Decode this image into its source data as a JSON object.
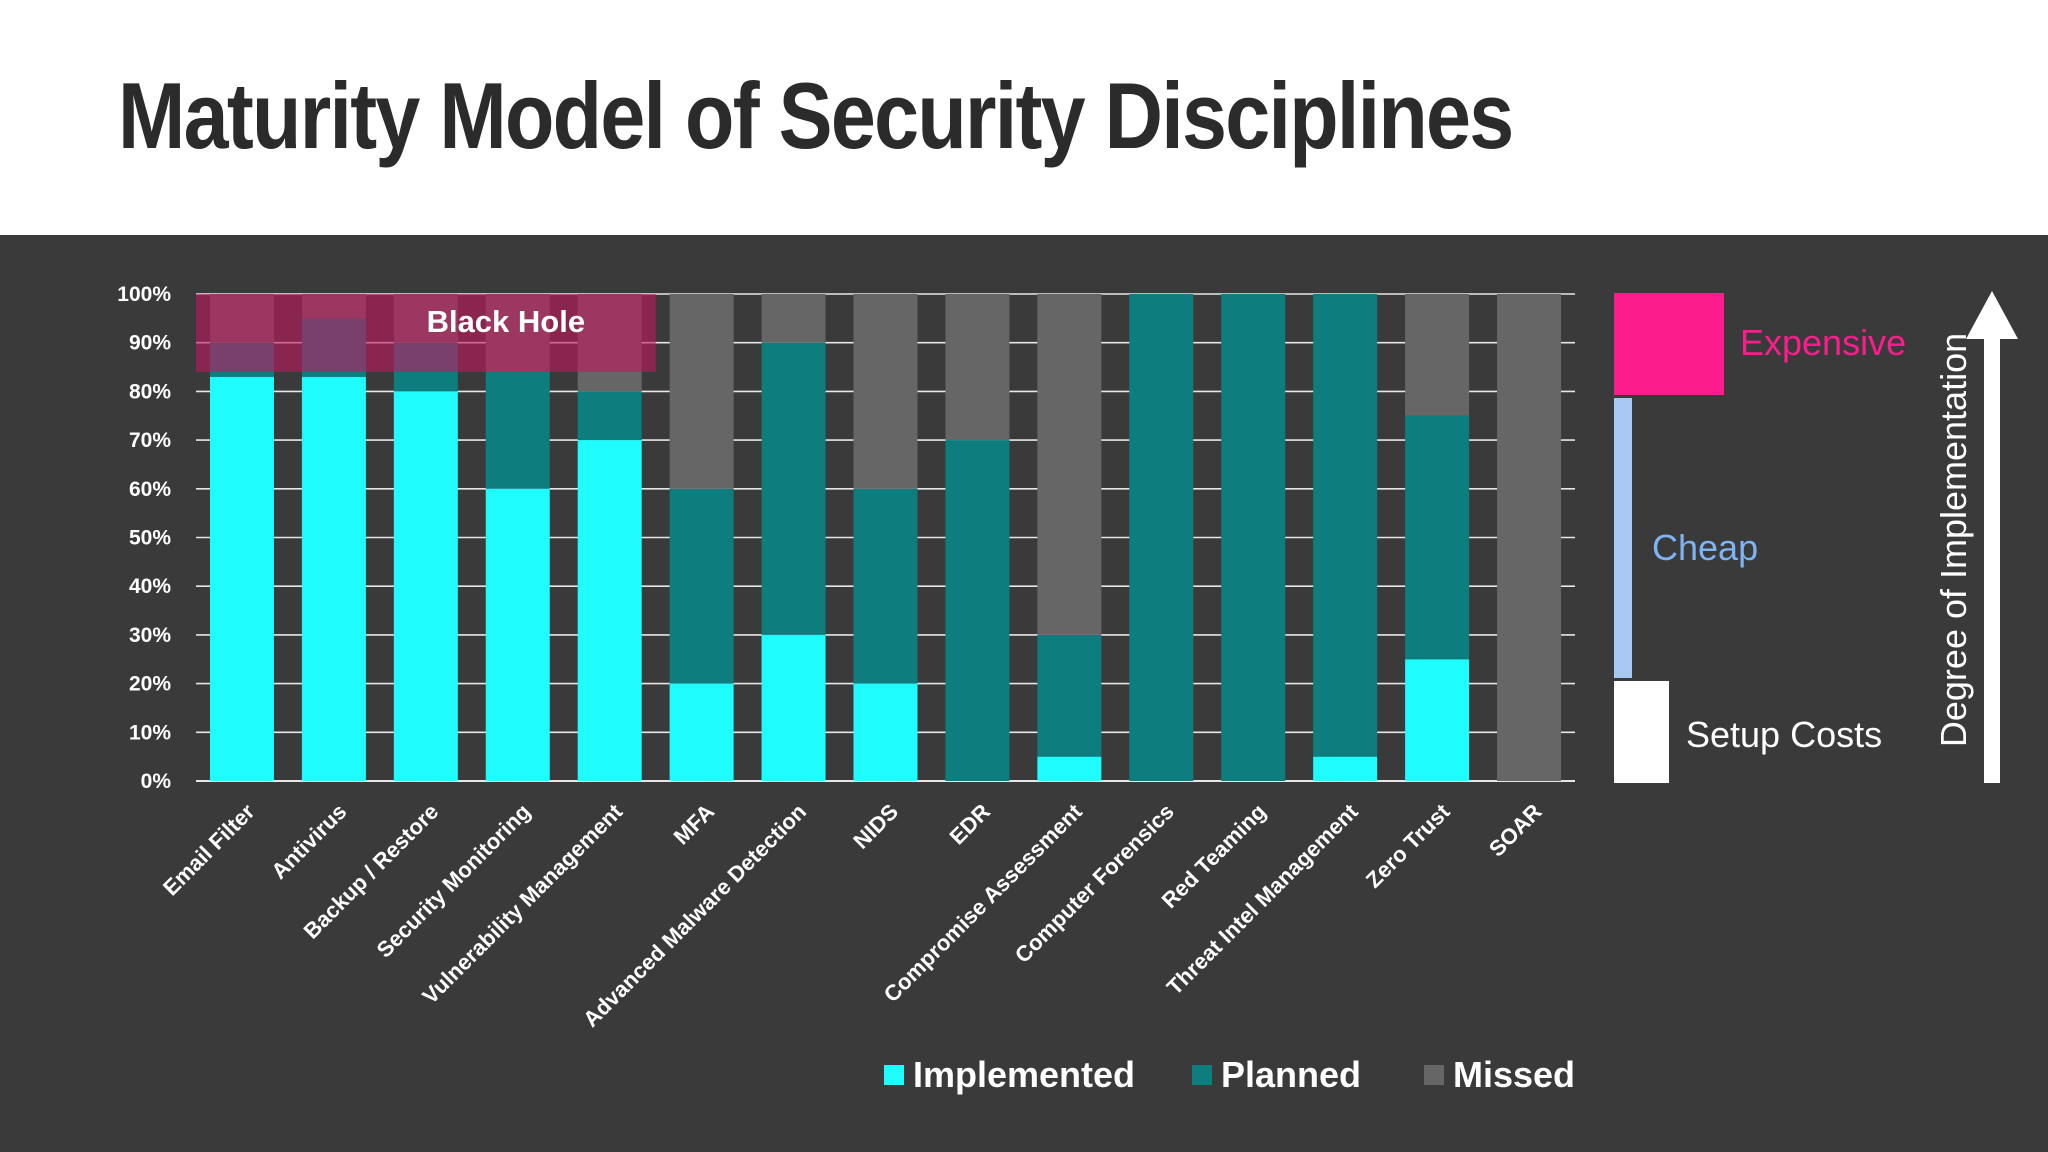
{
  "title": "Maturity Model of Security Disciplines",
  "colors": {
    "implemented": "#1ffcff",
    "planned": "#0d7d7d",
    "missed": "#666666",
    "black_hole": "#c0185e",
    "expensive": "#fc1c8c",
    "cheap": "#a7c8f2",
    "cheap_text": "#7fb4f2",
    "setup": "#ffffff",
    "panel_bg": "#3a3a3b"
  },
  "chart_data": {
    "type": "bar",
    "stacked": true,
    "y_ticks": [
      "0%",
      "10%",
      "20%",
      "30%",
      "40%",
      "50%",
      "60%",
      "70%",
      "80%",
      "90%",
      "100%"
    ],
    "ylim": [
      0,
      100
    ],
    "grid": true,
    "categories": [
      "Email Filter",
      "Antivirus",
      "Backup / Restore",
      "Security Monitoring",
      "Vulnerability Management",
      "MFA",
      "Advanced Malware Detection",
      "NIDS",
      "EDR",
      "Compromise Assessment",
      "Computer Forensics",
      "Red Teaming",
      "Threat Intel Management",
      "Zero Trust",
      "SOAR"
    ],
    "series": [
      {
        "name": "Implemented",
        "values": [
          83,
          83,
          80,
          60,
          70,
          20,
          30,
          20,
          0,
          5,
          0,
          0,
          5,
          25,
          0
        ]
      },
      {
        "name": "Planned",
        "values": [
          7,
          12,
          10,
          24,
          10,
          40,
          60,
          40,
          70,
          25,
          100,
          100,
          95,
          50,
          0
        ]
      },
      {
        "name": "Missed",
        "values": [
          10,
          5,
          10,
          16,
          20,
          40,
          10,
          40,
          30,
          70,
          0,
          0,
          0,
          25,
          100
        ]
      }
    ],
    "legend_position": "bottom",
    "annotations": {
      "black_hole": {
        "label": "Black Hole",
        "y_range": [
          84,
          100
        ],
        "category_span": [
          "Email Filter",
          "Vulnerability Management"
        ]
      }
    }
  },
  "side_scale": {
    "expensive": "Expensive",
    "cheap": "Cheap",
    "setup": "Setup Costs",
    "axis_label": "Degree of Implementation"
  }
}
